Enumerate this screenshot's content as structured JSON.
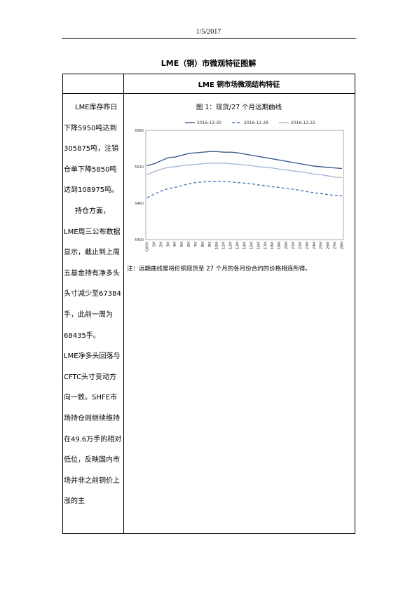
{
  "header": {
    "date": "1/5/2017"
  },
  "doc_title": "LME（铜）市微观特征图解",
  "table": {
    "section_title": "LME 铜市场微观结构特征",
    "left_paragraphs": [
      "LME库存昨日下降5950吨达到305875吨，注销仓单下降5850吨达到108975吨。",
      "持仓方面，LME周三公布数据显示，截止到上周五基金持有净多头头寸减少至67384手，此前一周为68435手。",
      "LME净多头回落与CFTC头寸变动方向一致。SHFE市场持仓则继续维持在49.6万手的相对低位，反映国内市场并非之前铜价上涨的主"
    ],
    "figure_title": "图 1：现货/27 个月远期曲线",
    "note": "注：远期曲线是将伦铜现货至 27 个月的各月份合约的价格相连所得。"
  },
  "chart_data": {
    "type": "line",
    "categories": [
      "CASH",
      "1M",
      "2M",
      "3M",
      "4M",
      "5M",
      "6M",
      "7M",
      "8M",
      "9M",
      "10M",
      "11M",
      "12M",
      "13M",
      "14M",
      "15M",
      "16M",
      "17M",
      "18M",
      "19M",
      "20M",
      "21M",
      "22M",
      "23M",
      "24M",
      "25M",
      "26M",
      "27M",
      "28M"
    ],
    "ylim": [
      5400,
      5580
    ],
    "yticks": [
      "5580",
      "5520",
      "5460",
      "5400"
    ],
    "ytick_values": [
      5580,
      5520,
      5460,
      5400
    ],
    "legend_position": "top",
    "grid": false,
    "series": [
      {
        "name": "2016-12-30",
        "color": "#3f5f8f",
        "dash": "none",
        "values": [
          5522,
          5525,
          5530,
          5535,
          5536,
          5539,
          5542,
          5543,
          5544,
          5545,
          5545,
          5544,
          5544,
          5543,
          5541,
          5539,
          5537,
          5535,
          5533,
          5531,
          5529,
          5527,
          5525,
          5523,
          5521,
          5520,
          5519,
          5518,
          5517
        ]
      },
      {
        "name": "2016-12-29",
        "color": "#4a78c0",
        "dash": "4,3",
        "values": [
          5469,
          5475,
          5480,
          5484,
          5486,
          5489,
          5492,
          5494,
          5495,
          5496,
          5496,
          5496,
          5495,
          5494,
          5493,
          5492,
          5490,
          5489,
          5487,
          5486,
          5484,
          5483,
          5481,
          5479,
          5477,
          5476,
          5474,
          5473,
          5472
        ]
      },
      {
        "name": "2016-12-22",
        "color": "#a8b8d8",
        "dash": "none",
        "values": [
          5507,
          5512,
          5516,
          5519,
          5520,
          5522,
          5523,
          5524,
          5525,
          5526,
          5526,
          5526,
          5525,
          5524,
          5523,
          5522,
          5520,
          5519,
          5518,
          5516,
          5515,
          5513,
          5512,
          5510,
          5508,
          5507,
          5505,
          5503,
          5502
        ]
      }
    ]
  }
}
